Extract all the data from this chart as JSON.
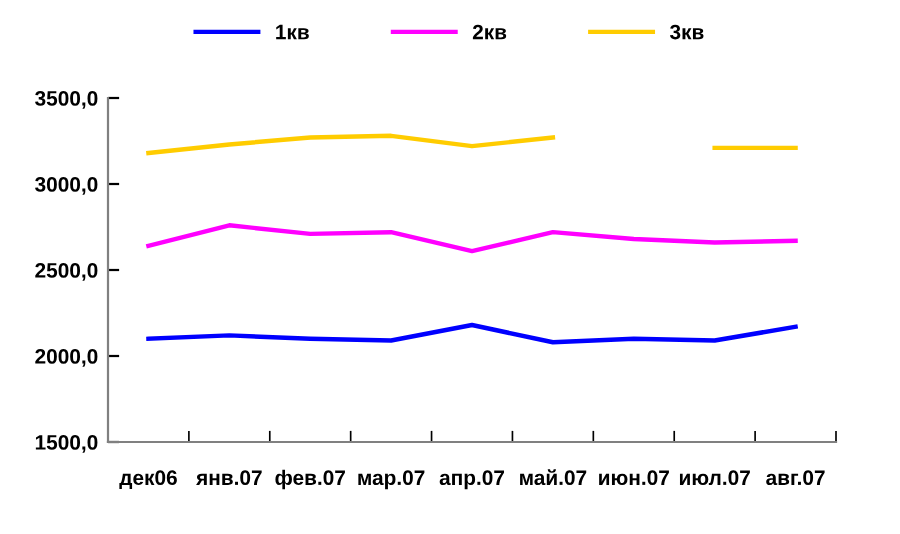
{
  "chart_data": {
    "type": "line",
    "categories": [
      "дек06",
      "янв.07",
      "фев.07",
      "мар.07",
      "апр.07",
      "май.07",
      "июн.07",
      "июл.07",
      "авг.07"
    ],
    "series": [
      {
        "name": "1кв",
        "color": "#0000ff",
        "values": [
          2100,
          2120,
          2100,
          2090,
          2180,
          2080,
          2100,
          2090,
          2170
        ]
      },
      {
        "name": "2кв",
        "color": "#ff00ff",
        "values": [
          2640,
          2760,
          2710,
          2720,
          2610,
          2720,
          2680,
          2660,
          2670
        ]
      },
      {
        "name": "3кв",
        "color": "#ffcc00",
        "values": [
          3180,
          3230,
          3270,
          3280,
          3220,
          3270,
          null,
          3210,
          3210
        ]
      }
    ],
    "ylim": [
      1500,
      3500
    ],
    "yticks": [
      {
        "value": 1500,
        "label": "1500,0"
      },
      {
        "value": 2000,
        "label": "2000,0"
      },
      {
        "value": 2500,
        "label": "2500,0"
      },
      {
        "value": 3000,
        "label": "3000,0"
      },
      {
        "value": 3500,
        "label": "3500,0"
      }
    ],
    "grid": false,
    "legend": "top",
    "marker": "none",
    "line_style": "solid"
  }
}
